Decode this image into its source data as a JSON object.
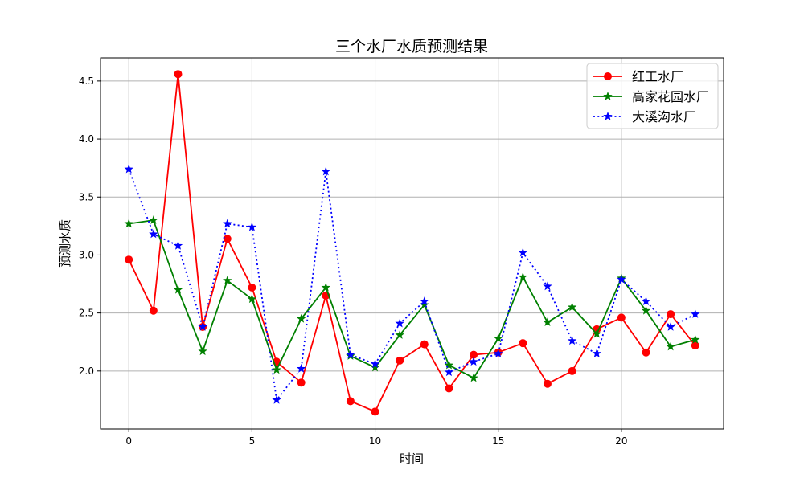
{
  "chart_data": {
    "type": "line",
    "title": "三个水厂水质预测结果",
    "xlabel": "时间",
    "ylabel": "预测水质",
    "x": [
      0,
      1,
      2,
      3,
      4,
      5,
      6,
      7,
      8,
      9,
      10,
      11,
      12,
      13,
      14,
      15,
      16,
      17,
      18,
      19,
      20,
      21,
      22,
      23
    ],
    "xlim": [
      -1.15,
      24.15
    ],
    "ylim": [
      1.5,
      4.7
    ],
    "xticks": [
      0,
      5,
      10,
      15,
      20
    ],
    "xtick_labels": [
      "0",
      "5",
      "10",
      "15",
      "20"
    ],
    "yticks": [
      2.0,
      2.5,
      3.0,
      3.5,
      4.0,
      4.5
    ],
    "ytick_labels": [
      "2.0",
      "2.5",
      "3.0",
      "3.5",
      "4.0",
      "4.5"
    ],
    "grid": true,
    "legend_position": "upper right",
    "series": [
      {
        "name": "红工水厂",
        "color": "#ff0000",
        "linestyle": "solid",
        "marker": "circle",
        "values": [
          2.96,
          2.52,
          4.56,
          2.38,
          3.14,
          2.72,
          2.08,
          1.9,
          2.65,
          1.74,
          1.65,
          2.09,
          2.23,
          1.85,
          2.14,
          2.16,
          2.24,
          1.89,
          2.0,
          2.36,
          2.46,
          2.16,
          2.49,
          2.22
        ]
      },
      {
        "name": "高家花园水厂",
        "color": "#008000",
        "linestyle": "solid",
        "marker": "star",
        "values": [
          3.27,
          3.3,
          2.7,
          2.17,
          2.78,
          2.62,
          2.01,
          2.45,
          2.72,
          2.13,
          2.03,
          2.31,
          2.57,
          2.05,
          1.94,
          2.28,
          2.81,
          2.42,
          2.55,
          2.32,
          2.8,
          2.52,
          2.21,
          2.27
        ]
      },
      {
        "name": "大溪沟水厂",
        "color": "#0000ff",
        "linestyle": "dotted",
        "marker": "star",
        "values": [
          3.74,
          3.18,
          3.08,
          2.38,
          3.27,
          3.24,
          1.75,
          2.02,
          3.72,
          2.14,
          2.06,
          2.41,
          2.6,
          1.99,
          2.08,
          2.15,
          3.02,
          2.73,
          2.26,
          2.15,
          2.79,
          2.6,
          2.38,
          2.49
        ]
      }
    ]
  }
}
